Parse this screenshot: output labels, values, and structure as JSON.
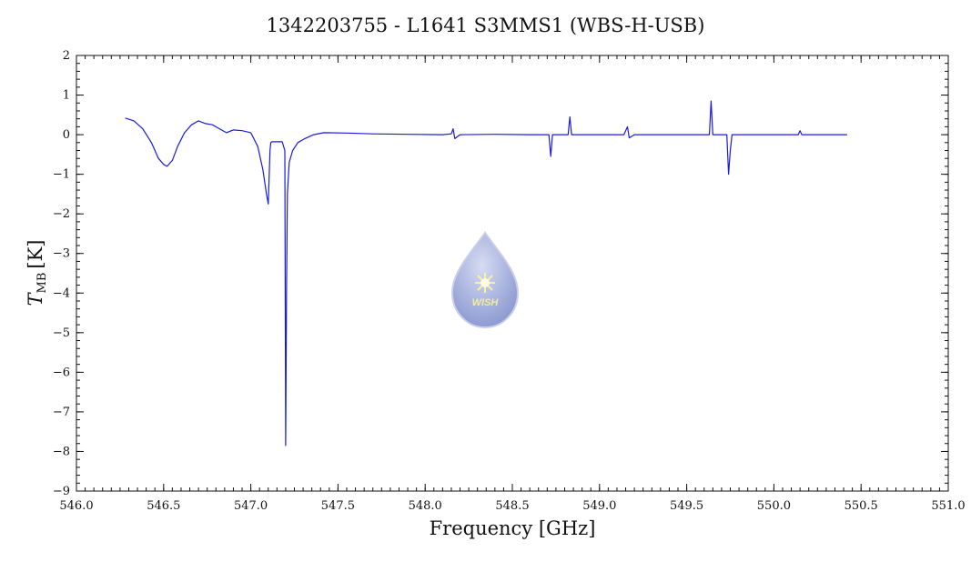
{
  "chart_data": {
    "type": "line",
    "title": "1342203755 - L1641 S3MMS1 (WBS-H-USB)",
    "xlabel": "Frequency [GHz]",
    "ylabel": {
      "main": "T",
      "sub": "MB",
      "unit": "[K]"
    },
    "xlim": [
      546.0,
      551.0
    ],
    "ylim": [
      -9,
      2
    ],
    "x_ticks": [
      "546.0",
      "546.5",
      "547.0",
      "547.5",
      "548.0",
      "548.5",
      "549.0",
      "549.5",
      "550.0",
      "550.5",
      "551.0"
    ],
    "y_ticks": [
      "2",
      "1",
      "0",
      "−1",
      "−2",
      "−3",
      "−4",
      "−5",
      "−6",
      "−7",
      "−8",
      "−9"
    ],
    "grid": false,
    "watermark": "WISH",
    "series": [
      {
        "color": "#1a1adf",
        "x": [
          546.28,
          546.33,
          546.38,
          546.43,
          546.47,
          546.5,
          546.52,
          546.55,
          546.58,
          546.62,
          546.66,
          546.7,
          546.74,
          546.78,
          546.82,
          546.86,
          546.9,
          546.95,
          547.0,
          547.04,
          547.07,
          547.09,
          547.1,
          547.11,
          547.115,
          547.12,
          547.14,
          547.16,
          547.18,
          547.195,
          547.2,
          547.205,
          547.21,
          547.22,
          547.24,
          547.27,
          547.31,
          547.36,
          547.42,
          547.55,
          547.7,
          547.9,
          548.1,
          548.15,
          548.16,
          548.17,
          548.2,
          548.4,
          548.6,
          548.71,
          548.72,
          548.73,
          548.8,
          548.82,
          548.83,
          548.84,
          548.95,
          549.1,
          549.14,
          549.16,
          549.17,
          549.2,
          549.4,
          549.62,
          549.63,
          549.64,
          549.65,
          549.66,
          549.72,
          549.73,
          549.74,
          549.75,
          549.76,
          549.9,
          550.1,
          550.14,
          550.15,
          550.16,
          550.3,
          550.42
        ],
        "y": [
          0.42,
          0.35,
          0.15,
          -0.2,
          -0.6,
          -0.75,
          -0.8,
          -0.65,
          -0.3,
          0.05,
          0.25,
          0.35,
          0.28,
          0.25,
          0.15,
          0.05,
          0.12,
          0.1,
          0.05,
          -0.3,
          -0.9,
          -1.5,
          -1.75,
          -0.4,
          -0.2,
          -0.18,
          -0.18,
          -0.18,
          -0.18,
          -0.4,
          -7.85,
          -3.8,
          -1.5,
          -0.7,
          -0.4,
          -0.2,
          -0.1,
          0.0,
          0.05,
          0.04,
          0.02,
          0.01,
          0.0,
          0.02,
          0.15,
          -0.1,
          0.0,
          0.01,
          0.0,
          0.0,
          -0.55,
          0.0,
          0.0,
          0.0,
          0.45,
          0.0,
          0.0,
          0.0,
          0.0,
          0.2,
          -0.08,
          0.0,
          0.0,
          0.0,
          0.0,
          0.85,
          0.0,
          0.0,
          0.0,
          0.0,
          -1.0,
          -0.4,
          0.0,
          0.0,
          0.0,
          0.0,
          0.1,
          0.0,
          0.0,
          0.0
        ]
      }
    ]
  }
}
